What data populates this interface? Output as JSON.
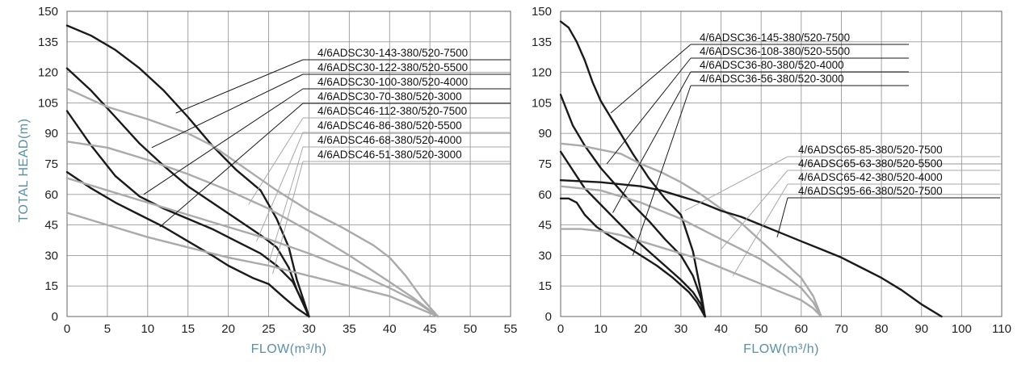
{
  "axis_title_color": "#5a8fa8",
  "chart_data": [
    {
      "type": "line",
      "xlabel": "FLOW(m³/h)",
      "ylabel": "TOTAL HEAD(m)",
      "xlim": [
        0,
        55
      ],
      "ylim": [
        0,
        150
      ],
      "x_ticks": [
        0,
        5,
        10,
        15,
        20,
        25,
        30,
        35,
        40,
        45,
        50,
        55
      ],
      "y_ticks": [
        0,
        15,
        30,
        45,
        60,
        75,
        90,
        105,
        120,
        135,
        150
      ],
      "grid": true,
      "legend_placement": "top-right",
      "series": [
        {
          "name": "4/6ADSC30-143-380/520-7500",
          "color": "#1a1a1a",
          "x": [
            0,
            3,
            6,
            9,
            12,
            15,
            18,
            21,
            24,
            26,
            27.5,
            28.5,
            30
          ],
          "y": [
            143,
            138,
            131,
            122,
            111,
            98,
            84,
            72,
            62,
            48,
            34,
            18,
            0
          ]
        },
        {
          "name": "4/6ADSC30-122-380/520-5500",
          "color": "#1a1a1a",
          "x": [
            0,
            3,
            6,
            9,
            12,
            15,
            18,
            21,
            24,
            26,
            27.5,
            28.5,
            30
          ],
          "y": [
            122,
            111,
            98,
            85,
            74,
            64,
            56,
            48,
            40,
            34,
            24,
            13,
            0
          ]
        },
        {
          "name": "4/6ADSC30-100-380/520-4000",
          "color": "#1a1a1a",
          "x": [
            0,
            3,
            6,
            9,
            12,
            15,
            18,
            21,
            24,
            26,
            28,
            29,
            30
          ],
          "y": [
            101,
            84,
            69,
            59,
            53,
            48,
            43,
            37,
            31,
            25,
            17,
            9,
            0
          ]
        },
        {
          "name": "4/6ADSC30-70-380/520-3000",
          "color": "#1a1a1a",
          "x": [
            0,
            3,
            6,
            9,
            12,
            15,
            18,
            20,
            23,
            25,
            27,
            28.5,
            30
          ],
          "y": [
            71,
            63,
            56,
            50,
            44,
            37,
            30,
            25,
            19,
            16,
            9,
            4,
            0
          ]
        },
        {
          "name": "4/6ADSC46-112-380/520-7500",
          "color": "#aaaaaa",
          "x": [
            0,
            5,
            10,
            15,
            18,
            22,
            26,
            30,
            34,
            38,
            40,
            42,
            44,
            46
          ],
          "y": [
            112,
            103,
            97,
            90,
            84,
            73,
            62,
            52,
            44,
            35,
            29,
            20,
            9,
            0
          ]
        },
        {
          "name": "4/6ADSC46-86-380/520-5500",
          "color": "#aaaaaa",
          "x": [
            0,
            5,
            10,
            15,
            20,
            25,
            30,
            35,
            40,
            43,
            46
          ],
          "y": [
            86,
            83,
            77,
            70,
            62,
            53,
            42,
            30,
            17,
            9,
            0
          ]
        },
        {
          "name": "4/6ADSC46-68-380/520-4000",
          "color": "#aaaaaa",
          "x": [
            0,
            5,
            10,
            15,
            20,
            25,
            30,
            35,
            40,
            43,
            46
          ],
          "y": [
            68,
            62,
            56,
            50,
            44,
            38,
            31,
            23,
            14,
            8,
            0
          ]
        },
        {
          "name": "4/6ADSC46-51-380/520-3000",
          "color": "#aaaaaa",
          "x": [
            0,
            5,
            10,
            15,
            20,
            25,
            30,
            35,
            40,
            43,
            46
          ],
          "y": [
            51,
            45,
            39,
            34,
            29,
            25,
            20,
            15,
            10,
            5,
            0
          ]
        }
      ],
      "legend_pointers": [
        {
          "x": 13.5,
          "y": 100
        },
        {
          "x": 10.5,
          "y": 83
        },
        {
          "x": 9.5,
          "y": 60
        },
        {
          "x": 11.5,
          "y": 44
        },
        {
          "x": 22.5,
          "y": 55
        },
        {
          "x": 23.5,
          "y": 37
        },
        {
          "x": 25,
          "y": 26
        },
        {
          "x": 25.5,
          "y": 21
        }
      ]
    },
    {
      "type": "line",
      "xlabel": "FLOW(m³/h)",
      "ylabel": "",
      "xlim": [
        0,
        110
      ],
      "ylim": [
        0,
        150
      ],
      "x_ticks": [
        0,
        10,
        20,
        30,
        40,
        50,
        60,
        70,
        80,
        90,
        100,
        110
      ],
      "y_ticks": [
        0,
        15,
        30,
        45,
        60,
        75,
        90,
        105,
        120,
        135,
        150
      ],
      "grid": true,
      "legend_placement": "top-right",
      "series": [
        {
          "name": "4/6ADSC36-145-380/520-7500",
          "color": "#1a1a1a",
          "x": [
            0,
            2,
            4,
            6,
            8,
            10,
            14,
            18,
            22,
            26,
            30,
            33,
            35,
            36
          ],
          "y": [
            145,
            142,
            135,
            126,
            115,
            106,
            93,
            80,
            68,
            58,
            50,
            32,
            12,
            0
          ]
        },
        {
          "name": "4/6ADSC36-108-380/520-5500",
          "color": "#1a1a1a",
          "x": [
            0,
            3,
            6,
            10,
            14,
            18,
            22,
            26,
            30,
            33,
            35,
            36
          ],
          "y": [
            109,
            94,
            84,
            73,
            64,
            55,
            47,
            38,
            30,
            20,
            9,
            0
          ]
        },
        {
          "name": "4/6ADSC36-80-380/520-4000",
          "color": "#1a1a1a",
          "x": [
            0,
            3,
            6,
            10,
            14,
            18,
            22,
            26,
            30,
            33,
            35,
            36
          ],
          "y": [
            81,
            72,
            63,
            55,
            47,
            39,
            32,
            25,
            18,
            12,
            6,
            0
          ]
        },
        {
          "name": "4/6ADSC36-56-380/520-3000",
          "color": "#1a1a1a",
          "x": [
            0,
            2,
            4,
            6,
            9,
            12,
            16,
            20,
            24,
            28,
            32,
            34,
            36
          ],
          "y": [
            58,
            58,
            56,
            50,
            44,
            40,
            35,
            30,
            25,
            19,
            12,
            7,
            0
          ]
        },
        {
          "name": "4/6ADSC65-85-380/520-7500",
          "color": "#aaaaaa",
          "x": [
            0,
            5,
            10,
            15,
            20,
            25,
            30,
            35,
            40,
            45,
            50,
            55,
            60,
            63,
            65
          ],
          "y": [
            85,
            84,
            82,
            80,
            75,
            71,
            66,
            60,
            53,
            46,
            37,
            28,
            19,
            10,
            0
          ]
        },
        {
          "name": "4/6ADSC65-63-380/520-5500",
          "color": "#aaaaaa",
          "x": [
            0,
            10,
            20,
            30,
            40,
            50,
            56,
            60,
            63,
            65
          ],
          "y": [
            64,
            62,
            56,
            48,
            38,
            28,
            20,
            14,
            7,
            0
          ]
        },
        {
          "name": "4/6ADSC65-42-380/520-4000",
          "color": "#aaaaaa",
          "x": [
            0,
            5,
            10,
            15,
            20,
            25,
            30,
            35,
            40,
            45,
            50,
            55,
            60,
            63,
            65
          ],
          "y": [
            43,
            43,
            42,
            40,
            37,
            34,
            31,
            28,
            24,
            20,
            16,
            12,
            8,
            4,
            0
          ]
        },
        {
          "name": "4/6ADSC95-66-380/520-7500",
          "color": "#1a1a1a",
          "x": [
            0,
            10,
            20,
            25,
            30,
            35,
            40,
            45,
            50,
            55,
            60,
            65,
            70,
            75,
            80,
            85,
            90,
            95
          ],
          "y": [
            67,
            66,
            64,
            62,
            59,
            56,
            52,
            49,
            45,
            41,
            37,
            33,
            29,
            24,
            19,
            13,
            6,
            0
          ]
        }
      ],
      "legend_pointers": [
        {
          "x": 12.5,
          "y": 100
        },
        {
          "x": 11.5,
          "y": 75
        },
        {
          "x": 13,
          "y": 51
        },
        {
          "x": 18,
          "y": 30
        },
        {
          "x": 31,
          "y": 52
        },
        {
          "x": 40,
          "y": 33
        },
        {
          "x": 43,
          "y": 20
        },
        {
          "x": 54,
          "y": 39
        }
      ]
    }
  ]
}
